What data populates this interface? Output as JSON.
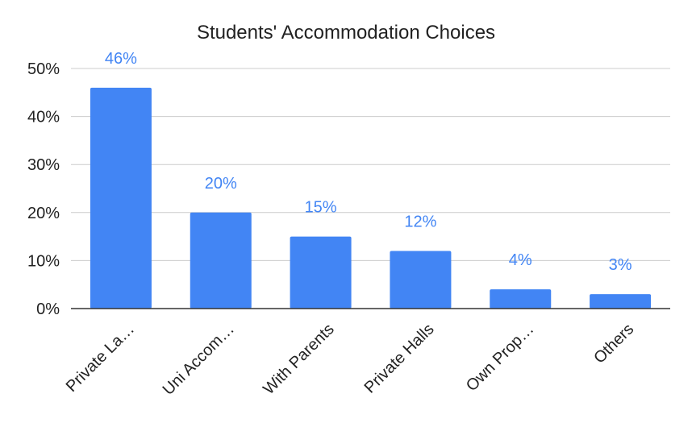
{
  "chart_data": {
    "type": "bar",
    "title": "Students' Accommodation Choices",
    "xlabel": "",
    "ylabel": "",
    "categories": [
      "Private La…",
      "Uni Accom…",
      "With Parents",
      "Private Halls",
      "Own Prop…",
      "Others"
    ],
    "values": [
      46,
      20,
      15,
      12,
      4,
      3
    ],
    "data_labels": [
      "46%",
      "20%",
      "15%",
      "12%",
      "4%",
      "3%"
    ],
    "ylim": [
      0,
      50
    ],
    "yticks": [
      0,
      10,
      20,
      30,
      40,
      50
    ],
    "ytick_labels": [
      "0%",
      "10%",
      "20%",
      "30%",
      "40%",
      "50%"
    ],
    "grid": true,
    "legend": "none",
    "colors": {
      "bar": "#4285f4",
      "data_label": "#4285f4",
      "grid": "#cccccc",
      "axis": "#333333",
      "text": "#222222"
    }
  }
}
